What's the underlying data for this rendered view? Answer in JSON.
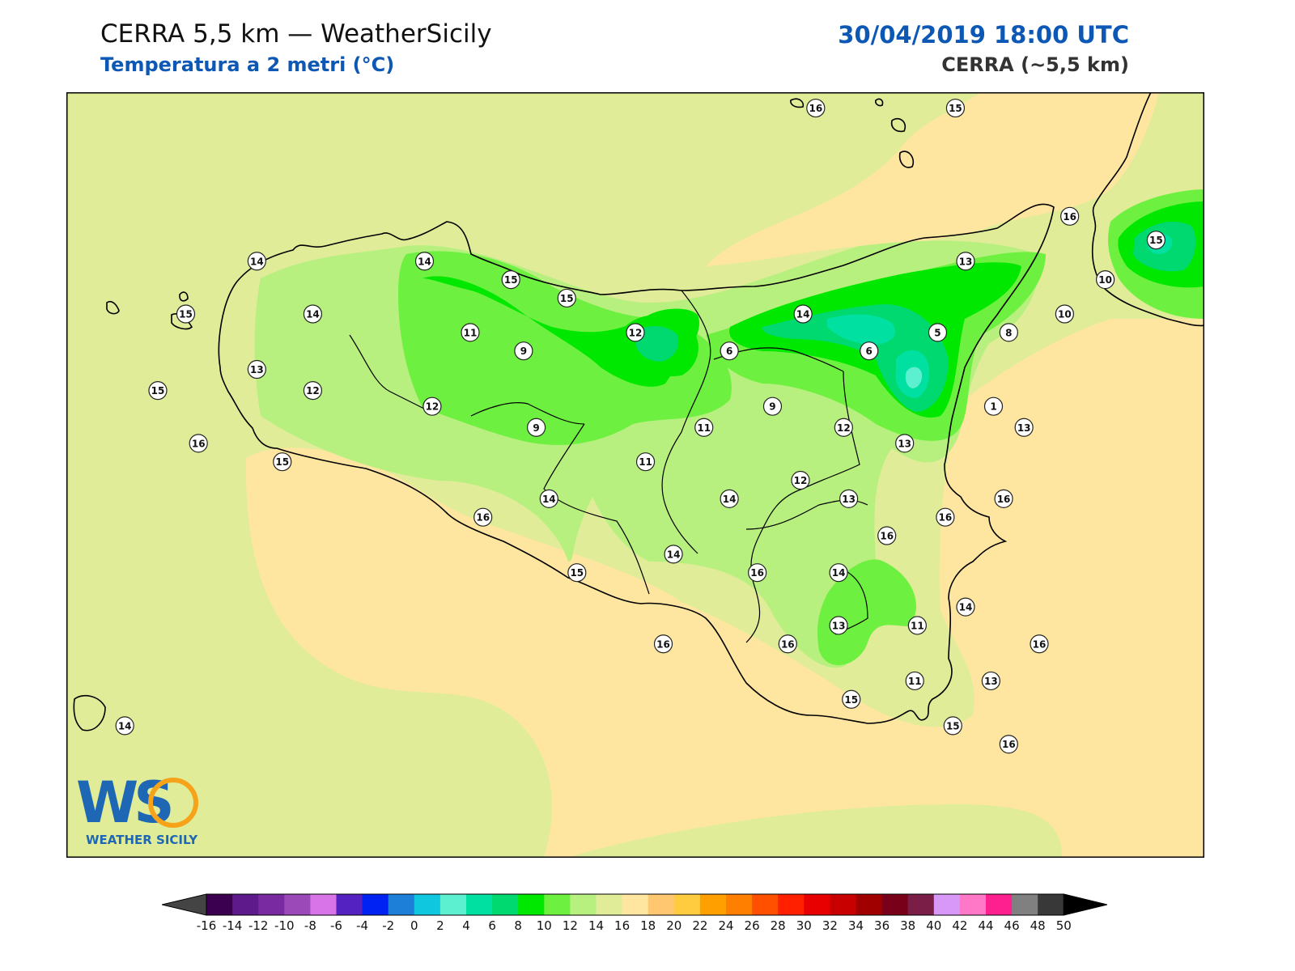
{
  "header": {
    "title": "CERRA 5,5 km — WeatherSicily",
    "subtitle": "Temperatura a 2 metri (°C)",
    "datetime": "30/04/2019 18:00 UTC",
    "model": "CERRA (~5,5 km)"
  },
  "logo": {
    "letters": "WS",
    "name": "WEATHER SICILY"
  },
  "colorbar": {
    "ticks": [
      "-16",
      "-14",
      "-12",
      "-10",
      "-8",
      "-6",
      "-4",
      "-2",
      "0",
      "2",
      "4",
      "6",
      "8",
      "10",
      "12",
      "14",
      "16",
      "18",
      "20",
      "22",
      "24",
      "26",
      "28",
      "30",
      "32",
      "34",
      "36",
      "38",
      "40",
      "42",
      "44",
      "46",
      "48",
      "50"
    ],
    "colors": [
      "#3b0050",
      "#5e1a8a",
      "#7a2aa0",
      "#9b48b8",
      "#d873e8",
      "#5522c2",
      "#0022f2",
      "#1e7fd8",
      "#0fc8e0",
      "#5cf0d0",
      "#00e0a0",
      "#00d870",
      "#00e800",
      "#6ef040",
      "#b8f080",
      "#e0ec98",
      "#ffe6a0",
      "#ffc870",
      "#ffcc40",
      "#ffa000",
      "#ff8000",
      "#ff5000",
      "#ff2000",
      "#e80000",
      "#c80000",
      "#a00000",
      "#780018",
      "#7a1e48",
      "#d898f8",
      "#ff78c8",
      "#ff2090",
      "#808080",
      "#383838"
    ]
  },
  "map": {
    "point_labels": [
      {
        "value": "16",
        "lon": 14.65,
        "lat": 38.79
      },
      {
        "value": "15",
        "lon": 15.2,
        "lat": 38.79
      },
      {
        "value": "16",
        "lon": 15.65,
        "lat": 38.38
      },
      {
        "value": "15",
        "lon": 15.99,
        "lat": 38.29
      },
      {
        "value": "13",
        "lon": 15.24,
        "lat": 38.21
      },
      {
        "value": "10",
        "lon": 15.79,
        "lat": 38.14
      },
      {
        "value": "10",
        "lon": 15.63,
        "lat": 38.01
      },
      {
        "value": "8",
        "lon": 15.41,
        "lat": 37.94
      },
      {
        "value": "5",
        "lon": 15.13,
        "lat": 37.94
      },
      {
        "value": "6",
        "lon": 14.86,
        "lat": 37.87
      },
      {
        "value": "6",
        "lon": 14.31,
        "lat": 37.87
      },
      {
        "value": "14",
        "lon": 14.6,
        "lat": 38.01
      },
      {
        "value": "12",
        "lon": 13.94,
        "lat": 37.94
      },
      {
        "value": "9",
        "lon": 13.5,
        "lat": 37.87
      },
      {
        "value": "11",
        "lon": 13.29,
        "lat": 37.94
      },
      {
        "value": "15",
        "lon": 13.45,
        "lat": 38.14
      },
      {
        "value": "15",
        "lon": 13.67,
        "lat": 38.07
      },
      {
        "value": "14",
        "lon": 13.11,
        "lat": 38.21
      },
      {
        "value": "14",
        "lon": 12.45,
        "lat": 38.21
      },
      {
        "value": "15",
        "lon": 12.17,
        "lat": 38.01
      },
      {
        "value": "14",
        "lon": 12.67,
        "lat": 38.01
      },
      {
        "value": "13",
        "lon": 12.45,
        "lat": 37.8
      },
      {
        "value": "12",
        "lon": 12.67,
        "lat": 37.72
      },
      {
        "value": "12",
        "lon": 13.14,
        "lat": 37.66
      },
      {
        "value": "15",
        "lon": 12.06,
        "lat": 37.72
      },
      {
        "value": "16",
        "lon": 12.22,
        "lat": 37.52
      },
      {
        "value": "15",
        "lon": 12.55,
        "lat": 37.45
      },
      {
        "value": "9",
        "lon": 13.55,
        "lat": 37.58
      },
      {
        "value": "1",
        "lon": 15.35,
        "lat": 37.66
      },
      {
        "value": "9",
        "lon": 14.48,
        "lat": 37.66
      },
      {
        "value": "11",
        "lon": 14.21,
        "lat": 37.58
      },
      {
        "value": "12",
        "lon": 14.76,
        "lat": 37.58
      },
      {
        "value": "13",
        "lon": 15.47,
        "lat": 37.58
      },
      {
        "value": "13",
        "lon": 15.0,
        "lat": 37.52
      },
      {
        "value": "11",
        "lon": 13.98,
        "lat": 37.45
      },
      {
        "value": "12",
        "lon": 14.59,
        "lat": 37.38
      },
      {
        "value": "14",
        "lon": 13.6,
        "lat": 37.31
      },
      {
        "value": "14",
        "lon": 14.31,
        "lat": 37.31
      },
      {
        "value": "13",
        "lon": 14.78,
        "lat": 37.31
      },
      {
        "value": "16",
        "lon": 15.39,
        "lat": 37.31
      },
      {
        "value": "16",
        "lon": 15.16,
        "lat": 37.24
      },
      {
        "value": "16",
        "lon": 13.34,
        "lat": 37.24
      },
      {
        "value": "16",
        "lon": 14.93,
        "lat": 37.17
      },
      {
        "value": "14",
        "lon": 14.09,
        "lat": 37.1
      },
      {
        "value": "15",
        "lon": 13.71,
        "lat": 37.03
      },
      {
        "value": "16",
        "lon": 14.42,
        "lat": 37.03
      },
      {
        "value": "14",
        "lon": 14.74,
        "lat": 37.03
      },
      {
        "value": "14",
        "lon": 15.24,
        "lat": 36.9
      },
      {
        "value": "13",
        "lon": 14.74,
        "lat": 36.83
      },
      {
        "value": "11",
        "lon": 15.05,
        "lat": 36.83
      },
      {
        "value": "16",
        "lon": 15.53,
        "lat": 36.76
      },
      {
        "value": "16",
        "lon": 14.05,
        "lat": 36.76
      },
      {
        "value": "16",
        "lon": 14.54,
        "lat": 36.76
      },
      {
        "value": "15",
        "lon": 14.79,
        "lat": 36.55
      },
      {
        "value": "11",
        "lon": 15.04,
        "lat": 36.62
      },
      {
        "value": "13",
        "lon": 15.34,
        "lat": 36.62
      },
      {
        "value": "15",
        "lon": 15.19,
        "lat": 36.45
      },
      {
        "value": "16",
        "lon": 15.41,
        "lat": 36.38
      },
      {
        "value": "14",
        "lon": 11.93,
        "lat": 36.45
      }
    ]
  }
}
